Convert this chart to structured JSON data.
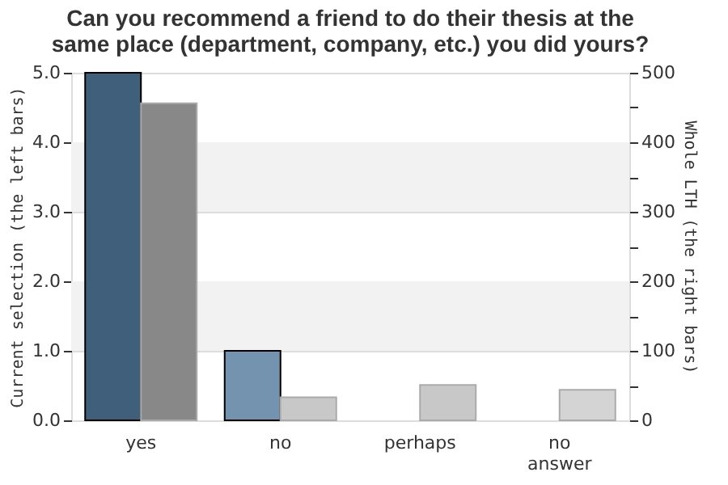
{
  "chart_data": {
    "type": "bar",
    "title": "Can you recommend a friend to do their thesis at the same place (department, company, etc.) you did yours?",
    "categories": [
      "yes",
      "no",
      "perhaps",
      "no answer"
    ],
    "series": [
      {
        "values": [
          5.0,
          1.0,
          null,
          null
        ],
        "colors": [
          "#3f5f7a",
          "#7393ae",
          null,
          null
        ]
      },
      {
        "axis": "y2",
        "values": [
          456,
          33,
          51,
          44
        ],
        "colors": [
          "#888888",
          "#c8c8c8",
          "#c8c8c8",
          "#d4d4d4"
        ]
      }
    ],
    "ylabel": "Current selection (the left bars)",
    "y2label": "Whole LTH (the right bars)",
    "ylim": [
      0,
      5
    ],
    "yticks": [
      {
        "value": 0,
        "label": "0.0"
      },
      {
        "value": 1,
        "label": "1.0"
      },
      {
        "value": 2,
        "label": "2.0"
      },
      {
        "value": 3,
        "label": "3.0"
      },
      {
        "value": 4,
        "label": "4.0"
      },
      {
        "value": 5,
        "label": "5.0"
      }
    ],
    "y2lim": [
      0,
      500
    ],
    "y2ticks": [
      0,
      {
        "value": 50,
        "label": null
      },
      100,
      {
        "value": 150,
        "label": null
      },
      200,
      {
        "value": 250,
        "label": null
      },
      300,
      {
        "value": 350,
        "label": null
      },
      400,
      {
        "value": 450,
        "label": null
      },
      500
    ],
    "grid": "y",
    "bands": [
      {
        "axis": "y",
        "from": 1,
        "to": 2,
        "color": "#f2f2f2"
      },
      {
        "axis": "y",
        "from": 3,
        "to": 4,
        "color": "#f2f2f2"
      }
    ]
  }
}
